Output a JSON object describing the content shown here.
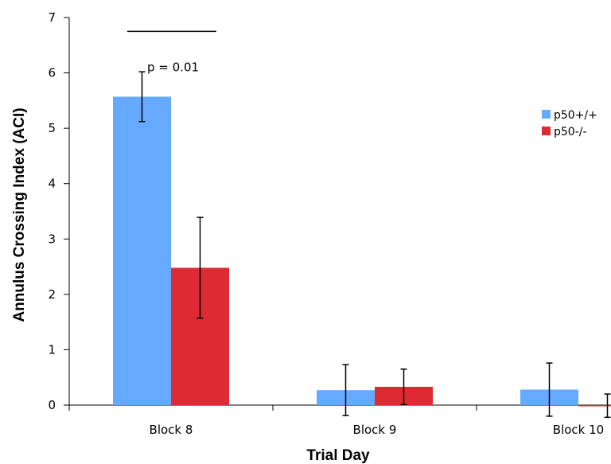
{
  "chart_data": {
    "type": "bar",
    "title": "",
    "xlabel": "Trial Day",
    "ylabel": "Annulus Crossing Index (ACI)",
    "categories": [
      "Block 8",
      "Block 9",
      "Block 10"
    ],
    "ylim": [
      0,
      7
    ],
    "yticks": [
      0,
      1,
      2,
      3,
      4,
      5,
      6,
      7
    ],
    "ytick_labels": [
      "0",
      "1",
      "2",
      "3",
      "4",
      "5",
      "6",
      "7"
    ],
    "grid": false,
    "legend_position": "right",
    "series": [
      {
        "name": "p50+/+",
        "color": "#66aaff",
        "values": [
          5.57,
          0.27,
          0.28
        ],
        "errors": [
          0.45,
          0.46,
          0.48
        ]
      },
      {
        "name": "p50-/-",
        "color": "#dd2a33",
        "values": [
          2.48,
          0.33,
          -0.01
        ],
        "errors": [
          0.91,
          0.32,
          0.21
        ]
      }
    ],
    "annotations": [
      {
        "text": "p = 0.01",
        "category": "Block 8",
        "bracket_y": 6.75,
        "text_y": 6.1
      }
    ]
  }
}
